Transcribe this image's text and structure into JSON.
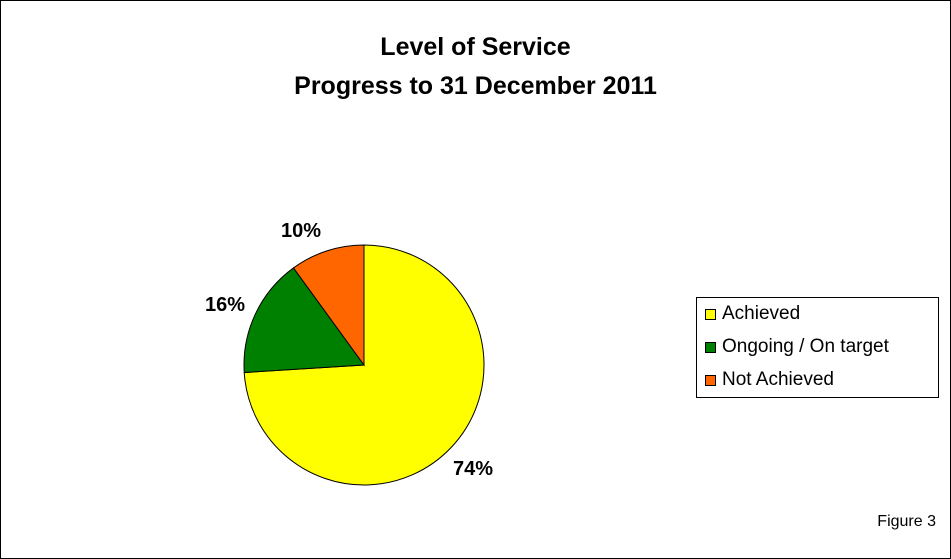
{
  "chart_data": {
    "type": "pie",
    "title": "Level of Service",
    "subtitle": "Progress to 31 December 2011",
    "categories": [
      "Achieved",
      "Ongoing / On target",
      "Not Achieved"
    ],
    "values": [
      74,
      16,
      10
    ],
    "data_labels": [
      "74%",
      "16%",
      "10%"
    ],
    "colors": [
      "#FFFF00",
      "#008000",
      "#FF6600"
    ],
    "legend_position": "right"
  },
  "figure_label": "Figure 3"
}
